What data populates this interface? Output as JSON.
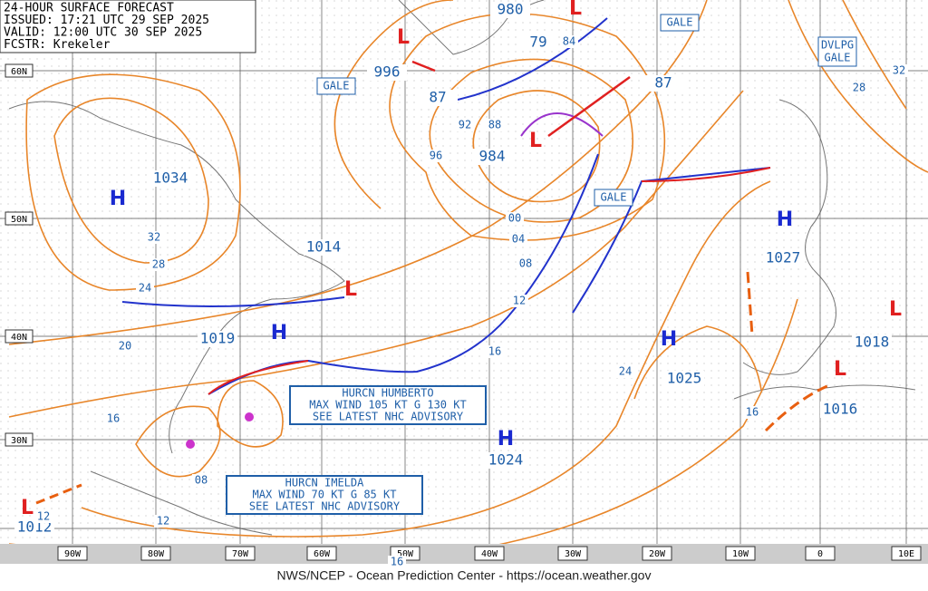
{
  "header": {
    "lines": [
      "24-HOUR SURFACE FORECAST",
      "ISSUED: 17:21 UTC 29 SEP 2025",
      "VALID: 12:00 UTC 30 SEP 2025",
      "FCSTR: Krekeler"
    ]
  },
  "centers": [
    "H",
    "H",
    "H",
    "H",
    "H",
    "L",
    "L",
    "L",
    "L",
    "L",
    "L",
    "L"
  ],
  "pressures": [
    "1034",
    "1014",
    "1019",
    "1024",
    "1025",
    "1027",
    "1018",
    "1016",
    "1012",
    "984",
    "996",
    "980",
    "87",
    "79",
    "87"
  ],
  "isobar_labels": [
    "32",
    "28",
    "24",
    "20",
    "16",
    "12",
    "08",
    "04",
    "00",
    "96",
    "92",
    "88",
    "84",
    "08",
    "12",
    "16",
    "24",
    "16",
    "32",
    "28",
    "16",
    "12"
  ],
  "warnings": [
    [
      "GALE"
    ],
    [
      "GALE"
    ],
    [
      "GALE"
    ],
    [
      "DVLPG",
      "GALE"
    ]
  ],
  "hurricanes": [
    {
      "lines": [
        "HURCN HUMBERTO",
        "MAX WIND 105 KT G 130 KT",
        "SEE LATEST NHC ADVISORY"
      ]
    },
    {
      "lines": [
        "HURCN IMELDA",
        "MAX WIND 70 KT G 85 KT",
        "SEE LATEST NHC ADVISORY"
      ]
    }
  ],
  "lat_labels": [
    "60N",
    "50N",
    "40N",
    "30N"
  ],
  "lon_labels": [
    "90W",
    "80W",
    "70W",
    "60W",
    "50W",
    "40W",
    "30W",
    "20W",
    "10W",
    "0",
    "10E"
  ],
  "footer": "NWS/NCEP - Ocean Prediction Center - https://ocean.weather.gov"
}
